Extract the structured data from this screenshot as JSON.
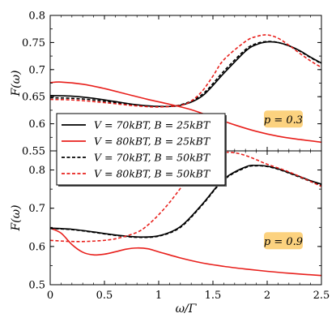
{
  "chart_data": [
    {
      "type": "line",
      "panel": "top",
      "xlabel": "",
      "ylabel": "F(ω)",
      "xlim": [
        0,
        2.5
      ],
      "ylim": [
        0.55,
        0.8
      ],
      "yticks": [
        "0.55",
        "0.6",
        "0.65",
        "0.7",
        "0.75",
        "0.8"
      ],
      "ytick_values": [
        0.55,
        0.6,
        0.65,
        0.7,
        0.75,
        0.8
      ],
      "annotation": "p = 0.3",
      "annotation_bg": "#fcd27f",
      "legend_placement": "bottom-left",
      "legend": [
        {
          "label": "V = 70kBT, B = 25kBT",
          "color": "#000000",
          "style": "solid"
        },
        {
          "label": "V = 80kBT, B = 25kBT",
          "color": "#e8201c",
          "style": "solid"
        },
        {
          "label": "V = 70kBT, B = 50kBT",
          "color": "#000000",
          "style": "dashed"
        },
        {
          "label": "V = 80kBT, B = 50kBT",
          "color": "#e8201c",
          "style": "dashed"
        }
      ],
      "series": [
        {
          "color": "#000000",
          "style": "solid",
          "x": [
            0,
            0.2,
            0.4,
            0.6,
            0.8,
            1.0,
            1.2,
            1.4,
            1.6,
            1.8,
            1.9,
            2.0,
            2.1,
            2.2,
            2.3,
            2.4,
            2.5
          ],
          "y": [
            0.652,
            0.651,
            0.647,
            0.641,
            0.635,
            0.632,
            0.634,
            0.651,
            0.693,
            0.734,
            0.746,
            0.751,
            0.75,
            0.744,
            0.735,
            0.723,
            0.712
          ]
        },
        {
          "color": "#e8201c",
          "style": "solid",
          "x": [
            0,
            0.1,
            0.3,
            0.5,
            0.7,
            0.9,
            1.1,
            1.3,
            1.5,
            1.7,
            1.9,
            2.1,
            2.3,
            2.5
          ],
          "y": [
            0.676,
            0.677,
            0.673,
            0.665,
            0.655,
            0.645,
            0.636,
            0.626,
            0.612,
            0.598,
            0.586,
            0.577,
            0.571,
            0.566
          ]
        },
        {
          "color": "#000000",
          "style": "dashed",
          "x": [
            0,
            0.2,
            0.4,
            0.6,
            0.8,
            1.0,
            1.2,
            1.4,
            1.6,
            1.8,
            1.9,
            2.0,
            2.1,
            2.2,
            2.3,
            2.4,
            2.5
          ],
          "y": [
            0.648,
            0.647,
            0.644,
            0.639,
            0.634,
            0.632,
            0.635,
            0.654,
            0.697,
            0.737,
            0.748,
            0.752,
            0.75,
            0.744,
            0.734,
            0.722,
            0.711
          ]
        },
        {
          "color": "#e8201c",
          "style": "dashed",
          "x": [
            0,
            0.2,
            0.4,
            0.6,
            0.8,
            1.0,
            1.2,
            1.3,
            1.4,
            1.5,
            1.6,
            1.8,
            1.9,
            2.0,
            2.1,
            2.2,
            2.3,
            2.4,
            2.5
          ],
          "y": [
            0.645,
            0.644,
            0.641,
            0.637,
            0.633,
            0.631,
            0.634,
            0.642,
            0.66,
            0.688,
            0.718,
            0.752,
            0.761,
            0.764,
            0.758,
            0.745,
            0.73,
            0.716,
            0.704
          ]
        }
      ]
    },
    {
      "type": "line",
      "panel": "bottom",
      "xlabel": "ω/Γ",
      "ylabel": "F(ω)",
      "xlim": [
        0,
        2.5
      ],
      "ylim": [
        0.5,
        0.85
      ],
      "xticks": [
        "0",
        "0.5",
        "1",
        "1.5",
        "2",
        "2.5"
      ],
      "xtick_values": [
        0,
        0.5,
        1,
        1.5,
        2,
        2.5
      ],
      "yticks": [
        "0.5",
        "0.6",
        "0.7",
        "0.8"
      ],
      "ytick_values": [
        0.5,
        0.6,
        0.7,
        0.8
      ],
      "annotation": "p = 0.9",
      "annotation_bg": "#fcd27f",
      "series": [
        {
          "color": "#000000",
          "style": "solid",
          "x": [
            0,
            0.2,
            0.4,
            0.6,
            0.8,
            1.0,
            1.2,
            1.4,
            1.6,
            1.8,
            1.9,
            2.0,
            2.1,
            2.2,
            2.3,
            2.4,
            2.5
          ],
          "y": [
            0.648,
            0.645,
            0.638,
            0.63,
            0.625,
            0.628,
            0.652,
            0.71,
            0.776,
            0.808,
            0.812,
            0.81,
            0.803,
            0.793,
            0.783,
            0.772,
            0.763
          ]
        },
        {
          "color": "#e8201c",
          "style": "solid",
          "x": [
            0,
            0.1,
            0.2,
            0.3,
            0.4,
            0.5,
            0.6,
            0.7,
            0.8,
            0.9,
            1.0,
            1.2,
            1.4,
            1.6,
            1.8,
            2.0,
            2.2,
            2.5
          ],
          "y": [
            0.648,
            0.635,
            0.605,
            0.585,
            0.578,
            0.58,
            0.586,
            0.593,
            0.596,
            0.594,
            0.586,
            0.57,
            0.557,
            0.548,
            0.541,
            0.535,
            0.53,
            0.524
          ]
        },
        {
          "color": "#000000",
          "style": "dashed",
          "x": [
            0,
            0.2,
            0.4,
            0.6,
            0.8,
            1.0,
            1.2,
            1.4,
            1.6,
            1.8,
            1.9,
            2.0,
            2.1,
            2.2,
            2.3,
            2.4,
            2.5
          ],
          "y": [
            0.647,
            0.644,
            0.637,
            0.629,
            0.624,
            0.627,
            0.65,
            0.708,
            0.774,
            0.806,
            0.811,
            0.809,
            0.802,
            0.792,
            0.781,
            0.77,
            0.76
          ]
        },
        {
          "color": "#e8201c",
          "style": "dashed",
          "x": [
            0,
            0.2,
            0.4,
            0.6,
            0.8,
            0.9,
            1.0,
            1.1,
            1.2,
            1.3,
            1.4,
            1.5,
            1.6,
            1.7,
            1.8,
            1.9,
            2.0,
            2.2,
            2.4,
            2.5
          ],
          "y": [
            0.616,
            0.613,
            0.614,
            0.62,
            0.637,
            0.656,
            0.683,
            0.715,
            0.752,
            0.79,
            0.822,
            0.84,
            0.846,
            0.845,
            0.838,
            0.827,
            0.815,
            0.795,
            0.77,
            0.757
          ]
        }
      ]
    }
  ]
}
